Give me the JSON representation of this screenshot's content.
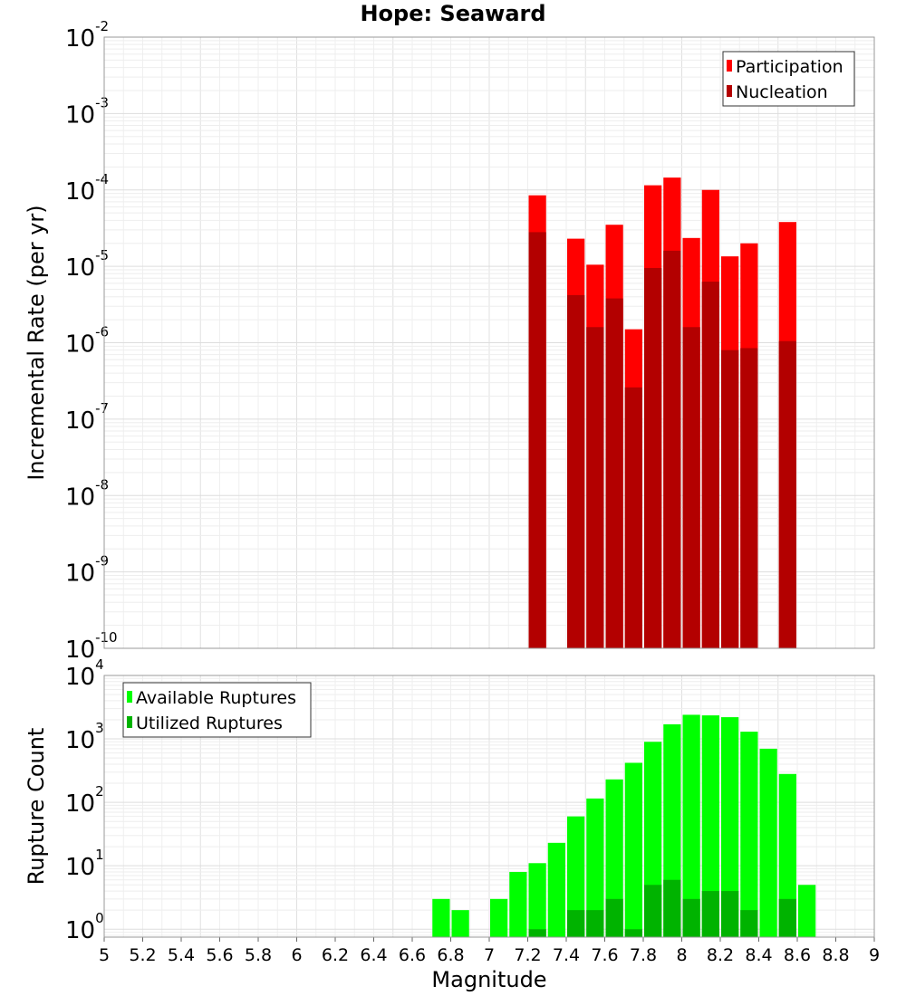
{
  "chart_data": [
    {
      "type": "bar",
      "panel": "top",
      "title": "Hope: Seaward",
      "xlabel": "",
      "ylabel": "Incremental Rate (per yr)",
      "xlim": [
        5,
        9
      ],
      "ylim": [
        1e-10,
        0.01
      ],
      "yscale": "log",
      "y_tick_base": "10",
      "y_tick_exponents": [
        "-10",
        "-9",
        "-8",
        "-7",
        "-6",
        "-5",
        "-4",
        "-3",
        "-2"
      ],
      "grid": true,
      "legend_position": "top-right",
      "bar_width": 0.1,
      "series": [
        {
          "name": "Participation",
          "color": "#ff0000",
          "x": [
            7.25,
            7.45,
            7.55,
            7.65,
            7.75,
            7.85,
            7.95,
            8.05,
            8.15,
            8.25,
            8.35,
            8.55
          ],
          "values": [
            8.5e-05,
            2.3e-05,
            1.05e-05,
            3.5e-05,
            1.5e-06,
            0.000115,
            0.000145,
            2.35e-05,
            0.0001,
            1.35e-05,
            2e-05,
            3.8e-05
          ]
        },
        {
          "name": "Nucleation",
          "color": "#b30000",
          "x": [
            7.25,
            7.45,
            7.55,
            7.65,
            7.75,
            7.85,
            7.95,
            8.05,
            8.15,
            8.25,
            8.35,
            8.55
          ],
          "values": [
            2.8e-05,
            4.2e-06,
            1.6e-06,
            3.8e-06,
            2.6e-07,
            9.5e-06,
            1.6e-05,
            1.6e-06,
            6.3e-06,
            8e-07,
            8.5e-07,
            1.05e-06
          ]
        }
      ]
    },
    {
      "type": "bar",
      "panel": "bottom",
      "title": "",
      "xlabel": "Magnitude",
      "ylabel": "Rupture Count",
      "xlim": [
        5,
        9
      ],
      "ylim": [
        0.75,
        10000
      ],
      "yscale": "log",
      "y_tick_base": "10",
      "y_tick_exponents": [
        "0",
        "1",
        "2",
        "3",
        "4"
      ],
      "x_ticks": [
        "5",
        "5.2",
        "5.4",
        "5.6",
        "5.8",
        "6",
        "6.2",
        "6.4",
        "6.6",
        "6.8",
        "7",
        "7.2",
        "7.4",
        "7.6",
        "7.8",
        "8",
        "8.2",
        "8.4",
        "8.6",
        "8.8",
        "9"
      ],
      "grid": true,
      "legend_position": "top-left",
      "bar_width": 0.1,
      "series": [
        {
          "name": "Available Ruptures",
          "color": "#00ff00",
          "x": [
            6.75,
            6.85,
            7.05,
            7.15,
            7.25,
            7.35,
            7.45,
            7.55,
            7.65,
            7.75,
            7.85,
            7.95,
            8.05,
            8.15,
            8.25,
            8.35,
            8.45,
            8.55,
            8.65
          ],
          "values": [
            3,
            2,
            3,
            8,
            11,
            23,
            60,
            115,
            230,
            420,
            900,
            1700,
            2400,
            2350,
            2200,
            1300,
            700,
            280,
            5
          ]
        },
        {
          "name": "Utilized Ruptures",
          "color": "#00b300",
          "x": [
            7.25,
            7.45,
            7.55,
            7.65,
            7.75,
            7.85,
            7.95,
            8.05,
            8.15,
            8.25,
            8.35,
            8.55
          ],
          "values": [
            1,
            2,
            2,
            3,
            1,
            5,
            6,
            3,
            4,
            4,
            2,
            3
          ]
        }
      ]
    }
  ]
}
